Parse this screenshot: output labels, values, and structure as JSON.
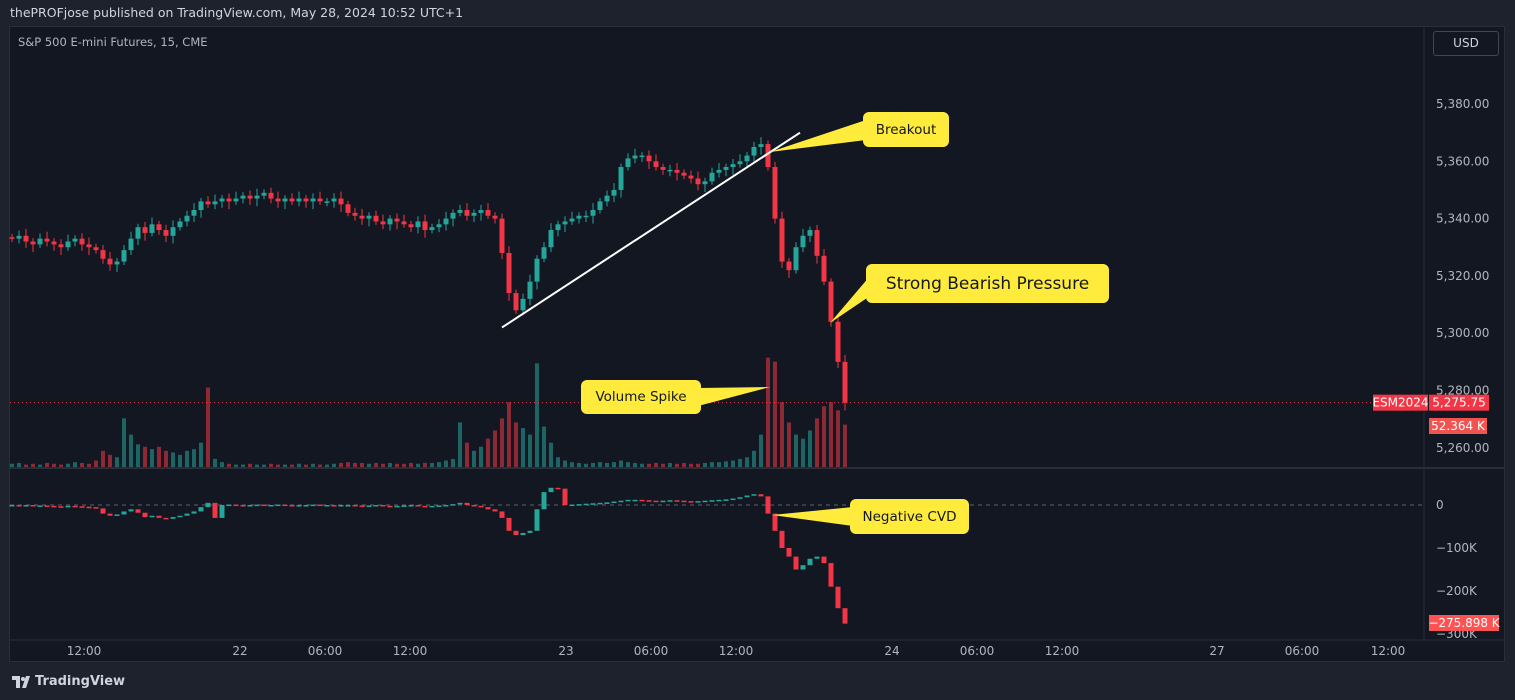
{
  "header": {
    "published": "thePROFjose published on TradingView.com, May 28, 2024 10:52 UTC+1"
  },
  "symbol_title": "S&P 500 E-mini Futures, 15, CME",
  "currency_button": "USD",
  "footer": {
    "brand": "TradingView"
  },
  "colors": {
    "up": "#26a69a",
    "down": "#f23645",
    "callout": "#ffeb3b",
    "background": "#131722"
  },
  "chart_data": {
    "type": "candlestick",
    "symbol": "ESM2024",
    "price_axis": {
      "ticks": [
        "5,380.00",
        "5,360.00",
        "5,340.00",
        "5,320.00",
        "5,300.00",
        "5,280.00",
        "5,260.00"
      ],
      "tick_values": [
        5380,
        5360,
        5340,
        5320,
        5300,
        5280,
        5260
      ]
    },
    "cvd_axis": {
      "ticks": [
        "0",
        "−100K",
        "−200K",
        "−300K"
      ],
      "tick_values": [
        0,
        -100,
        -200,
        -300
      ]
    },
    "time_axis": {
      "ticks": [
        "12:00",
        "22",
        "06:00",
        "12:00",
        "23",
        "06:00",
        "12:00",
        "24",
        "06:00",
        "12:00",
        "27",
        "06:00",
        "12:00"
      ]
    },
    "last_price_label": "5,275.75",
    "symbol_label": "ESM2024",
    "last_volume_label": "52.364 K",
    "last_cvd_label": "−275.898 K",
    "close": [
      5333,
      5334,
      5332,
      5331,
      5333,
      5332,
      5331,
      5330,
      5332,
      5333,
      5331,
      5330,
      5329,
      5326,
      5324,
      5325,
      5329,
      5333,
      5337,
      5335,
      5338,
      5336,
      5334,
      5337,
      5339,
      5341,
      5343,
      5346,
      5345,
      5346,
      5347,
      5346,
      5347,
      5348,
      5347,
      5348,
      5349,
      5347,
      5346,
      5347,
      5346,
      5347,
      5346,
      5347,
      5346,
      5346,
      5347,
      5345,
      5342,
      5341,
      5340,
      5341,
      5339,
      5338,
      5340,
      5339,
      5338,
      5337,
      5339,
      5336,
      5337,
      5338,
      5340,
      5342,
      5343,
      5341,
      5342,
      5343,
      5341,
      5340,
      5328,
      5314,
      5308,
      5312,
      5318,
      5326,
      5330,
      5336,
      5338,
      5339,
      5340,
      5341,
      5341,
      5343,
      5346,
      5348,
      5350,
      5358,
      5361,
      5362,
      5362,
      5360,
      5358,
      5357,
      5357,
      5356,
      5355,
      5354,
      5352,
      5353,
      5356,
      5357,
      5358,
      5359,
      5360,
      5362,
      5365,
      5366,
      5358,
      5340,
      5325,
      5322,
      5330,
      5334,
      5336,
      5327,
      5318,
      5304,
      5290,
      5275.75
    ],
    "volume_k": [
      4,
      5,
      3,
      4,
      3,
      5,
      4,
      3,
      4,
      6,
      5,
      4,
      8,
      20,
      15,
      12,
      60,
      40,
      28,
      25,
      22,
      25,
      20,
      18,
      15,
      20,
      22,
      30,
      98,
      10,
      6,
      4,
      3,
      3,
      4,
      3,
      3,
      4,
      3,
      3,
      3,
      4,
      3,
      4,
      3,
      3,
      4,
      5,
      6,
      5,
      5,
      4,
      5,
      4,
      5,
      4,
      4,
      5,
      4,
      5,
      5,
      6,
      8,
      10,
      55,
      30,
      20,
      25,
      35,
      45,
      60,
      80,
      55,
      48,
      40,
      128,
      50,
      30,
      12,
      8,
      6,
      5,
      4,
      5,
      6,
      5,
      6,
      8,
      6,
      5,
      4,
      4,
      5,
      4,
      5,
      4,
      5,
      4,
      4,
      5,
      6,
      6,
      7,
      8,
      10,
      12,
      20,
      40,
      135,
      130,
      80,
      55,
      40,
      35,
      45,
      60,
      75,
      80,
      70,
      52.364
    ],
    "cvd_k": [
      0,
      -1,
      0,
      -2,
      -1,
      -2,
      -3,
      -4,
      -2,
      -3,
      -4,
      -5,
      -8,
      -20,
      -25,
      -22,
      -15,
      -10,
      -18,
      -28,
      -25,
      -30,
      -32,
      -28,
      -25,
      -20,
      -15,
      -5,
      5,
      -30,
      0,
      1,
      0,
      -1,
      0,
      1,
      0,
      0,
      1,
      0,
      -1,
      0,
      0,
      1,
      0,
      0,
      -1,
      0,
      0,
      -1,
      -2,
      -1,
      0,
      -2,
      -3,
      -2,
      -1,
      0,
      -2,
      -3,
      -2,
      -1,
      0,
      2,
      5,
      0,
      -2,
      -5,
      -10,
      -15,
      -30,
      -60,
      -70,
      -65,
      -60,
      -10,
      30,
      40,
      38,
      0,
      1,
      2,
      3,
      4,
      5,
      6,
      8,
      10,
      12,
      12,
      11,
      10,
      9,
      10,
      11,
      10,
      9,
      8,
      9,
      10,
      11,
      12,
      13,
      15,
      18,
      22,
      25,
      20,
      -20,
      -60,
      -100,
      -120,
      -150,
      -140,
      -125,
      -120,
      -135,
      -190,
      -240,
      -275.898
    ],
    "annotations": [
      {
        "text": "Breakout"
      },
      {
        "text": "Strong Bearish Pressure"
      },
      {
        "text": "Volume Spike"
      },
      {
        "text": "Negative CVD"
      }
    ],
    "trendline": {
      "from_price": 5302,
      "to_price": 5370
    }
  }
}
